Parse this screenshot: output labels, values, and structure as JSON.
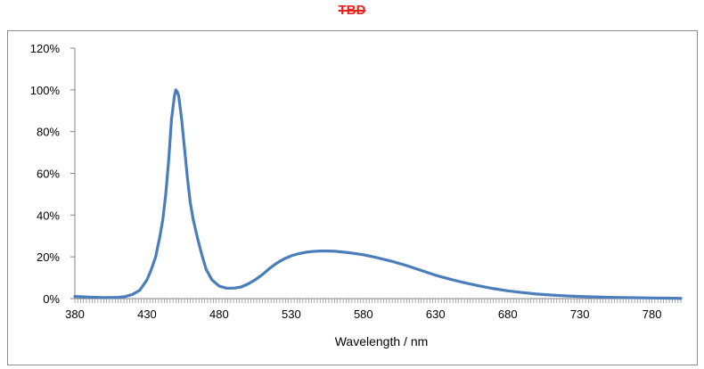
{
  "title": "TBD",
  "title_color": "#e8231f",
  "series_color": "#4a7ebb",
  "chart_data": {
    "type": "line",
    "title": "TBD",
    "xlabel": "Wavelength / nm",
    "ylabel": "",
    "xlim": [
      380,
      800
    ],
    "ylim": [
      0,
      1.2
    ],
    "x_ticks": [
      380,
      430,
      480,
      530,
      580,
      630,
      680,
      730,
      780
    ],
    "x_tick_labels": [
      "380",
      "430",
      "480",
      "530",
      "580",
      "630",
      "680",
      "730",
      "780"
    ],
    "y_ticks": [
      0,
      0.2,
      0.4,
      0.6,
      0.8,
      1.0,
      1.2
    ],
    "y_tick_labels": [
      "0%",
      "20%",
      "40%",
      "60%",
      "80%",
      "100%",
      "120%"
    ],
    "grid": false,
    "legend": "none",
    "series": [
      {
        "x": [
          380,
          390,
          400,
          410,
          415,
          420,
          425,
          430,
          433,
          436,
          439,
          441,
          443,
          445,
          447,
          449,
          450,
          451,
          452,
          454,
          456,
          458,
          460,
          462,
          465,
          468,
          471,
          475,
          480,
          485,
          490,
          495,
          500,
          505,
          510,
          515,
          520,
          525,
          530,
          535,
          540,
          545,
          550,
          555,
          560,
          570,
          580,
          590,
          600,
          610,
          620,
          630,
          640,
          650,
          660,
          670,
          680,
          690,
          700,
          710,
          720,
          730,
          740,
          750,
          760,
          770,
          780,
          790,
          800
        ],
        "y": [
          0.01,
          0.007,
          0.005,
          0.006,
          0.01,
          0.02,
          0.04,
          0.09,
          0.14,
          0.2,
          0.3,
          0.38,
          0.5,
          0.66,
          0.86,
          0.97,
          1.0,
          0.99,
          0.97,
          0.86,
          0.72,
          0.58,
          0.46,
          0.38,
          0.29,
          0.21,
          0.14,
          0.09,
          0.06,
          0.05,
          0.05,
          0.055,
          0.07,
          0.09,
          0.115,
          0.145,
          0.17,
          0.19,
          0.205,
          0.215,
          0.222,
          0.226,
          0.228,
          0.228,
          0.227,
          0.22,
          0.21,
          0.195,
          0.178,
          0.158,
          0.135,
          0.112,
          0.093,
          0.076,
          0.061,
          0.048,
          0.037,
          0.029,
          0.022,
          0.017,
          0.013,
          0.01,
          0.008,
          0.006,
          0.005,
          0.004,
          0.003,
          0.002,
          0.001
        ]
      }
    ]
  }
}
